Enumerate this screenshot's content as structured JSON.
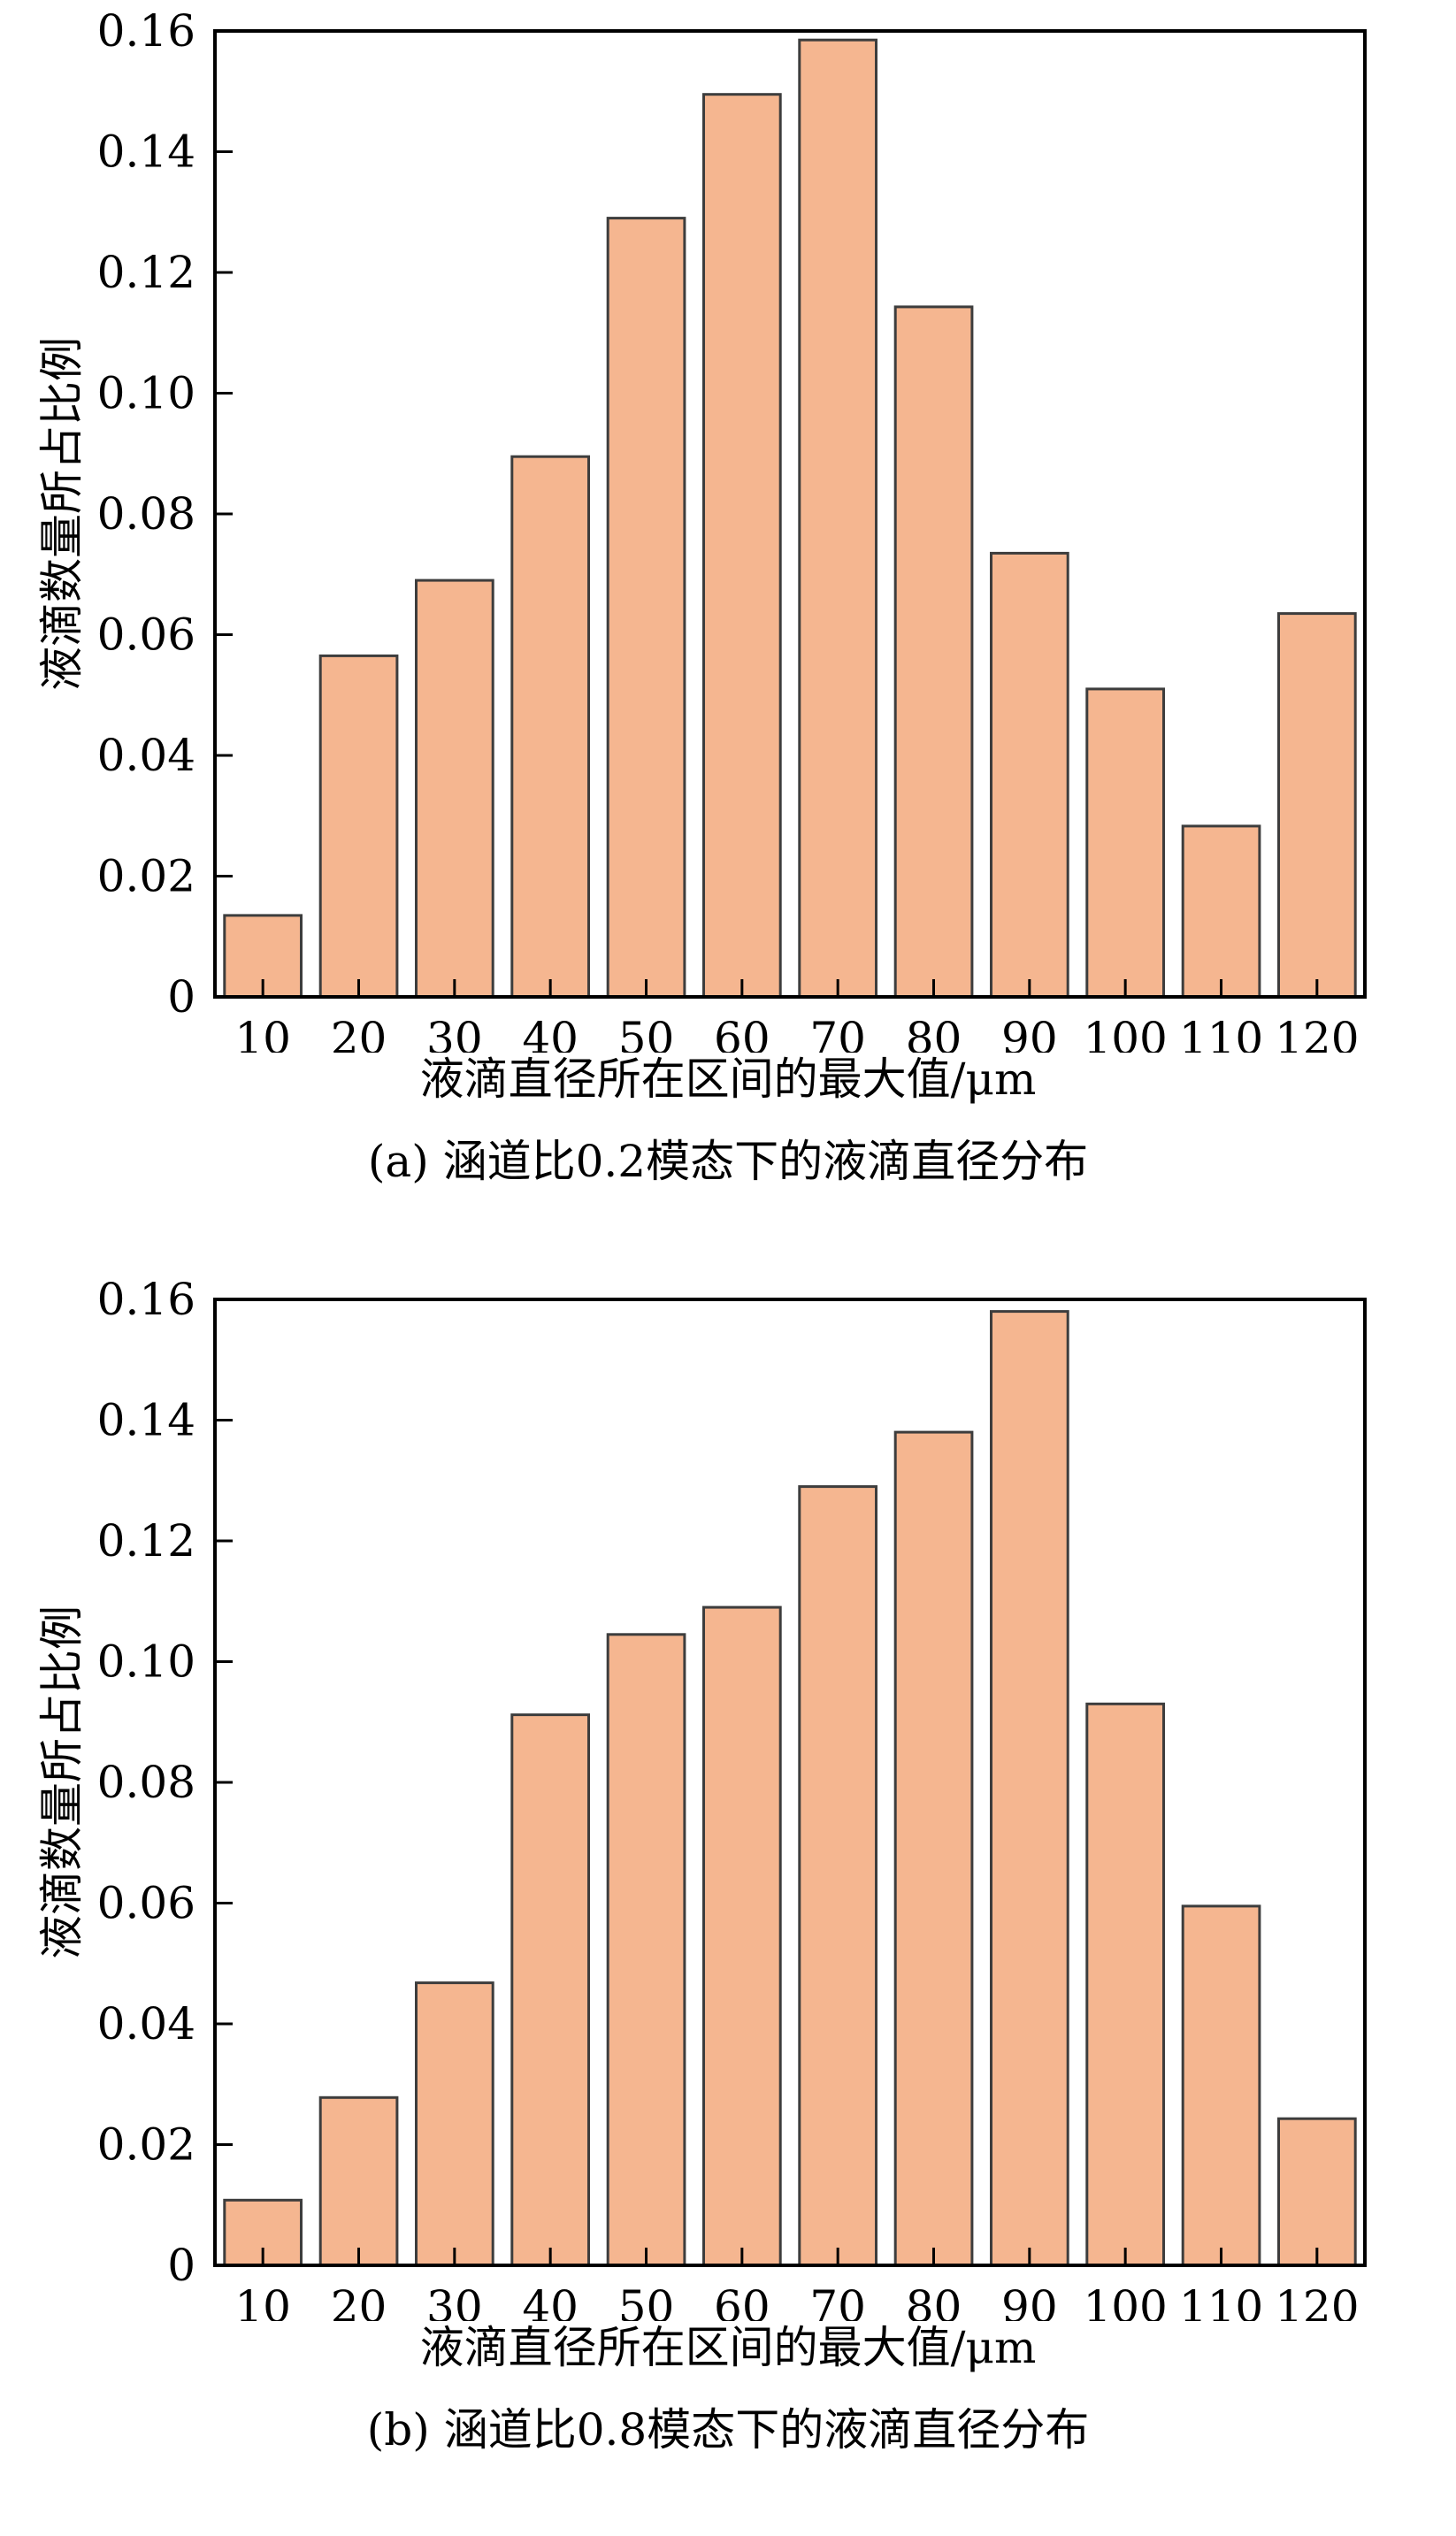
{
  "chart_data": [
    {
      "type": "bar",
      "title": "(a) 涵道比0.2模态下的液滴直径分布",
      "xlabel": "液滴直径所在区间的最大值/μm",
      "ylabel": "液滴数量所占比例",
      "categories": [
        "10",
        "20",
        "30",
        "40",
        "50",
        "60",
        "70",
        "80",
        "90",
        "100",
        "110",
        "120"
      ],
      "values": [
        0.0135,
        0.0565,
        0.069,
        0.0895,
        0.129,
        0.1495,
        0.1585,
        0.1143,
        0.0735,
        0.051,
        0.0283,
        0.0635
      ],
      "ylim": [
        0,
        0.16
      ],
      "yticks": [
        "0",
        "0.02",
        "0.04",
        "0.06",
        "0.08",
        "0.10",
        "0.12",
        "0.14",
        "0.16"
      ],
      "bar_color": "#F5B690",
      "edge_color": "#3d3d3d",
      "grid": false
    },
    {
      "type": "bar",
      "title": "(b) 涵道比0.8模态下的液滴直径分布",
      "xlabel": "液滴直径所在区间的最大值/μm",
      "ylabel": "液滴数量所占比例",
      "categories": [
        "10",
        "20",
        "30",
        "40",
        "50",
        "60",
        "70",
        "80",
        "90",
        "100",
        "110",
        "120"
      ],
      "values": [
        0.0108,
        0.0278,
        0.0468,
        0.0912,
        0.1045,
        0.109,
        0.129,
        0.138,
        0.158,
        0.093,
        0.0595,
        0.0243
      ],
      "ylim": [
        0,
        0.16
      ],
      "yticks": [
        "0",
        "0.02",
        "0.04",
        "0.06",
        "0.08",
        "0.10",
        "0.12",
        "0.14",
        "0.16"
      ],
      "bar_color": "#F5B690",
      "edge_color": "#3d3d3d",
      "grid": false
    }
  ]
}
